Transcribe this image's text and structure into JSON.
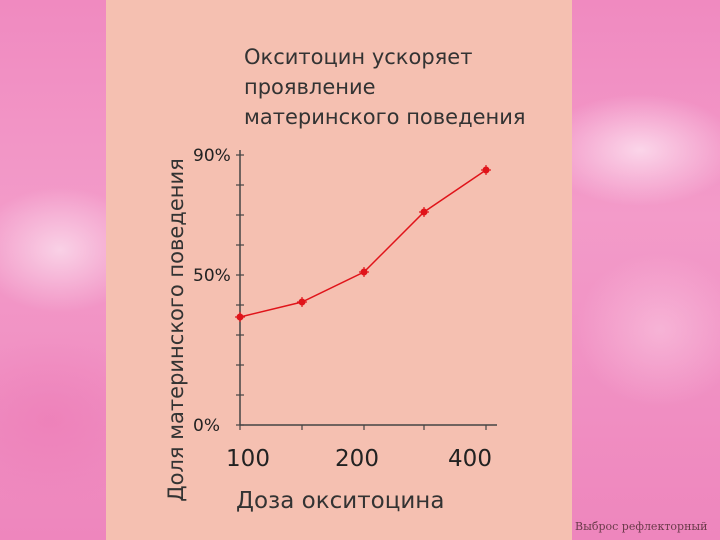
{
  "chart_data": {
    "type": "line",
    "title": "Окситоцин ускоряет\nпроявление\nматеринского поведения",
    "xlabel": "Доза окситоцина",
    "ylabel": "Доля материнского поведения",
    "x_tick_labels": [
      "100",
      "200",
      "400"
    ],
    "y_tick_labels": [
      "90%",
      "50%",
      "0%"
    ],
    "y_ticks": [
      90,
      50,
      0
    ],
    "ylim": [
      0,
      90
    ],
    "grid": false,
    "series": [
      {
        "values": [
          36,
          41,
          51,
          71,
          85
        ]
      }
    ],
    "line_color": "#e0141a"
  },
  "caption": "Выброс рефлекторный"
}
